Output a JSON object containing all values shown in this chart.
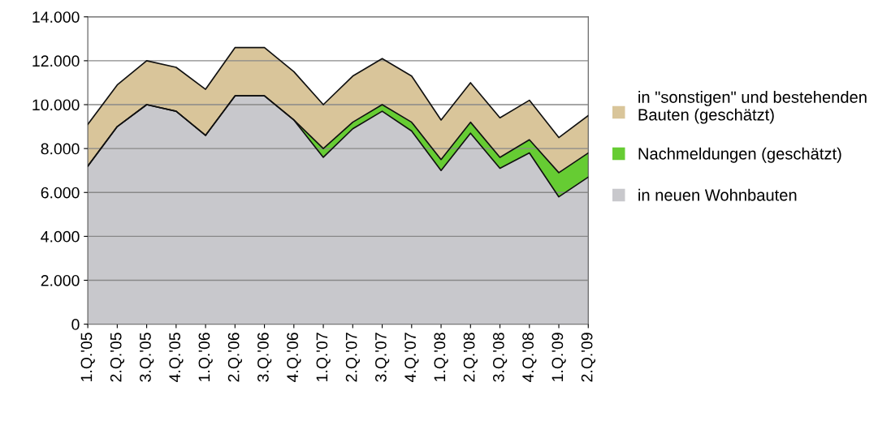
{
  "chart_data": {
    "type": "area",
    "stacked": true,
    "categories": [
      "1.Q.'05",
      "2.Q.'05",
      "3.Q.'05",
      "4.Q.'05",
      "1.Q.'06",
      "2.Q.'06",
      "3.Q.'06",
      "4.Q.'06",
      "1.Q.'07",
      "2.Q.'07",
      "3.Q.'07",
      "4.Q.'07",
      "1.Q.'08",
      "2.Q.'08",
      "3.Q.'08",
      "4.Q.'08",
      "1.Q.'09",
      "2.Q.'09"
    ],
    "series": [
      {
        "name": "in neuen Wohnbauten",
        "color": "#c8c8cc",
        "values": [
          7200,
          9000,
          10000,
          9700,
          8600,
          10400,
          10400,
          9300,
          7600,
          8900,
          9700,
          8800,
          7000,
          8700,
          7100,
          7800,
          5800,
          6700
        ]
      },
      {
        "name": "Nachmeldungen (geschätzt)",
        "color": "#66cc33",
        "values": [
          0,
          0,
          0,
          0,
          0,
          0,
          0,
          0,
          400,
          300,
          300,
          400,
          500,
          500,
          500,
          600,
          1100,
          1100
        ]
      },
      {
        "name": "in \"sonstigen\" und bestehenden Bauten (geschätzt)",
        "color": "#d9c59a",
        "values": [
          1900,
          1900,
          2000,
          2000,
          2100,
          2200,
          2200,
          2200,
          2000,
          2100,
          2100,
          2100,
          1800,
          1800,
          1800,
          1800,
          1600,
          1700
        ]
      }
    ],
    "ylim": [
      0,
      14000
    ],
    "yticks": [
      {
        "value": 0,
        "label": "0"
      },
      {
        "value": 2000,
        "label": "2.000"
      },
      {
        "value": 4000,
        "label": "4.000"
      },
      {
        "value": 6000,
        "label": "6.000"
      },
      {
        "value": 8000,
        "label": "8.000"
      },
      {
        "value": 10000,
        "label": "10.000"
      },
      {
        "value": 12000,
        "label": "12.000"
      },
      {
        "value": 14000,
        "label": "14.000"
      }
    ],
    "grid": "y",
    "legend": "right"
  }
}
